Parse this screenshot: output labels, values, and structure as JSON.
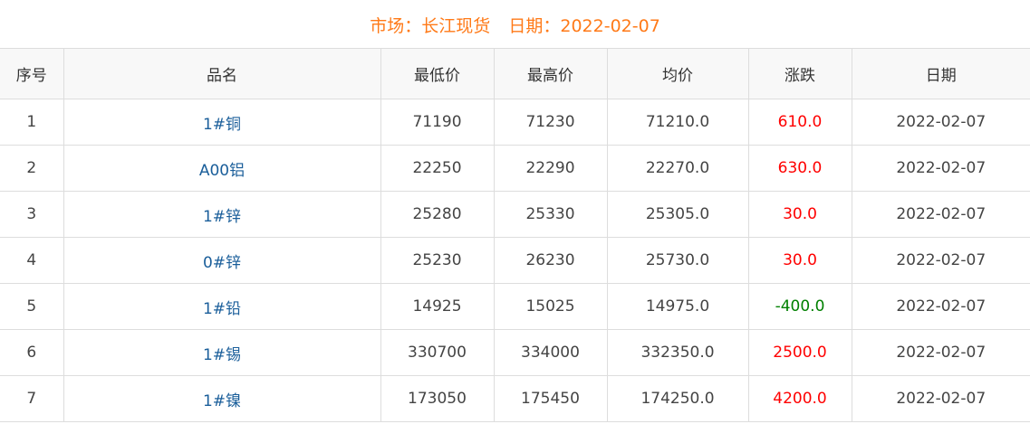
{
  "header": {
    "market_label": "市场：",
    "market": "长江现货",
    "date_label": "日期：",
    "date": "2022-02-07"
  },
  "colors": {
    "title": "#ff7a18",
    "name": "#1a5e9a",
    "up": "#ff0000",
    "down": "#008000"
  },
  "table": {
    "columns": [
      "序号",
      "品名",
      "最低价",
      "最高价",
      "均价",
      "涨跌",
      "日期"
    ],
    "rows": [
      [
        "1",
        "1#铜",
        "71190",
        "71230",
        "71210.0",
        "610.0",
        "2022-02-07"
      ],
      [
        "2",
        "A00铝",
        "22250",
        "22290",
        "22270.0",
        "630.0",
        "2022-02-07"
      ],
      [
        "3",
        "1#锌",
        "25280",
        "25330",
        "25305.0",
        "30.0",
        "2022-02-07"
      ],
      [
        "4",
        "0#锌",
        "25230",
        "26230",
        "25730.0",
        "30.0",
        "2022-02-07"
      ],
      [
        "5",
        "1#铅",
        "14925",
        "15025",
        "14975.0",
        "-400.0",
        "2022-02-07"
      ],
      [
        "6",
        "1#锡",
        "330700",
        "334000",
        "332350.0",
        "2500.0",
        "2022-02-07"
      ],
      [
        "7",
        "1#镍",
        "173050",
        "175450",
        "174250.0",
        "4200.0",
        "2022-02-07"
      ]
    ]
  }
}
